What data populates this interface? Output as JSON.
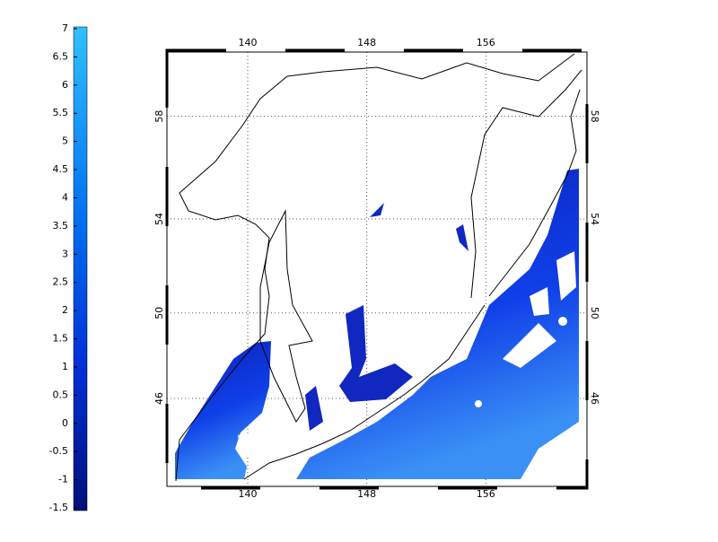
{
  "colorbar": {
    "lim": [
      -1.5,
      7
    ],
    "ticks": [
      -1.5,
      -1,
      -0.5,
      0,
      0.5,
      1,
      1.5,
      2,
      2.5,
      3,
      3.5,
      4,
      4.5,
      5,
      5.5,
      6,
      6.5,
      7
    ]
  },
  "map": {
    "xlim": [
      134.57,
      162.8
    ],
    "xticks": [
      140,
      148,
      156
    ],
    "yticks": [
      46,
      50,
      54,
      58
    ]
  }
}
